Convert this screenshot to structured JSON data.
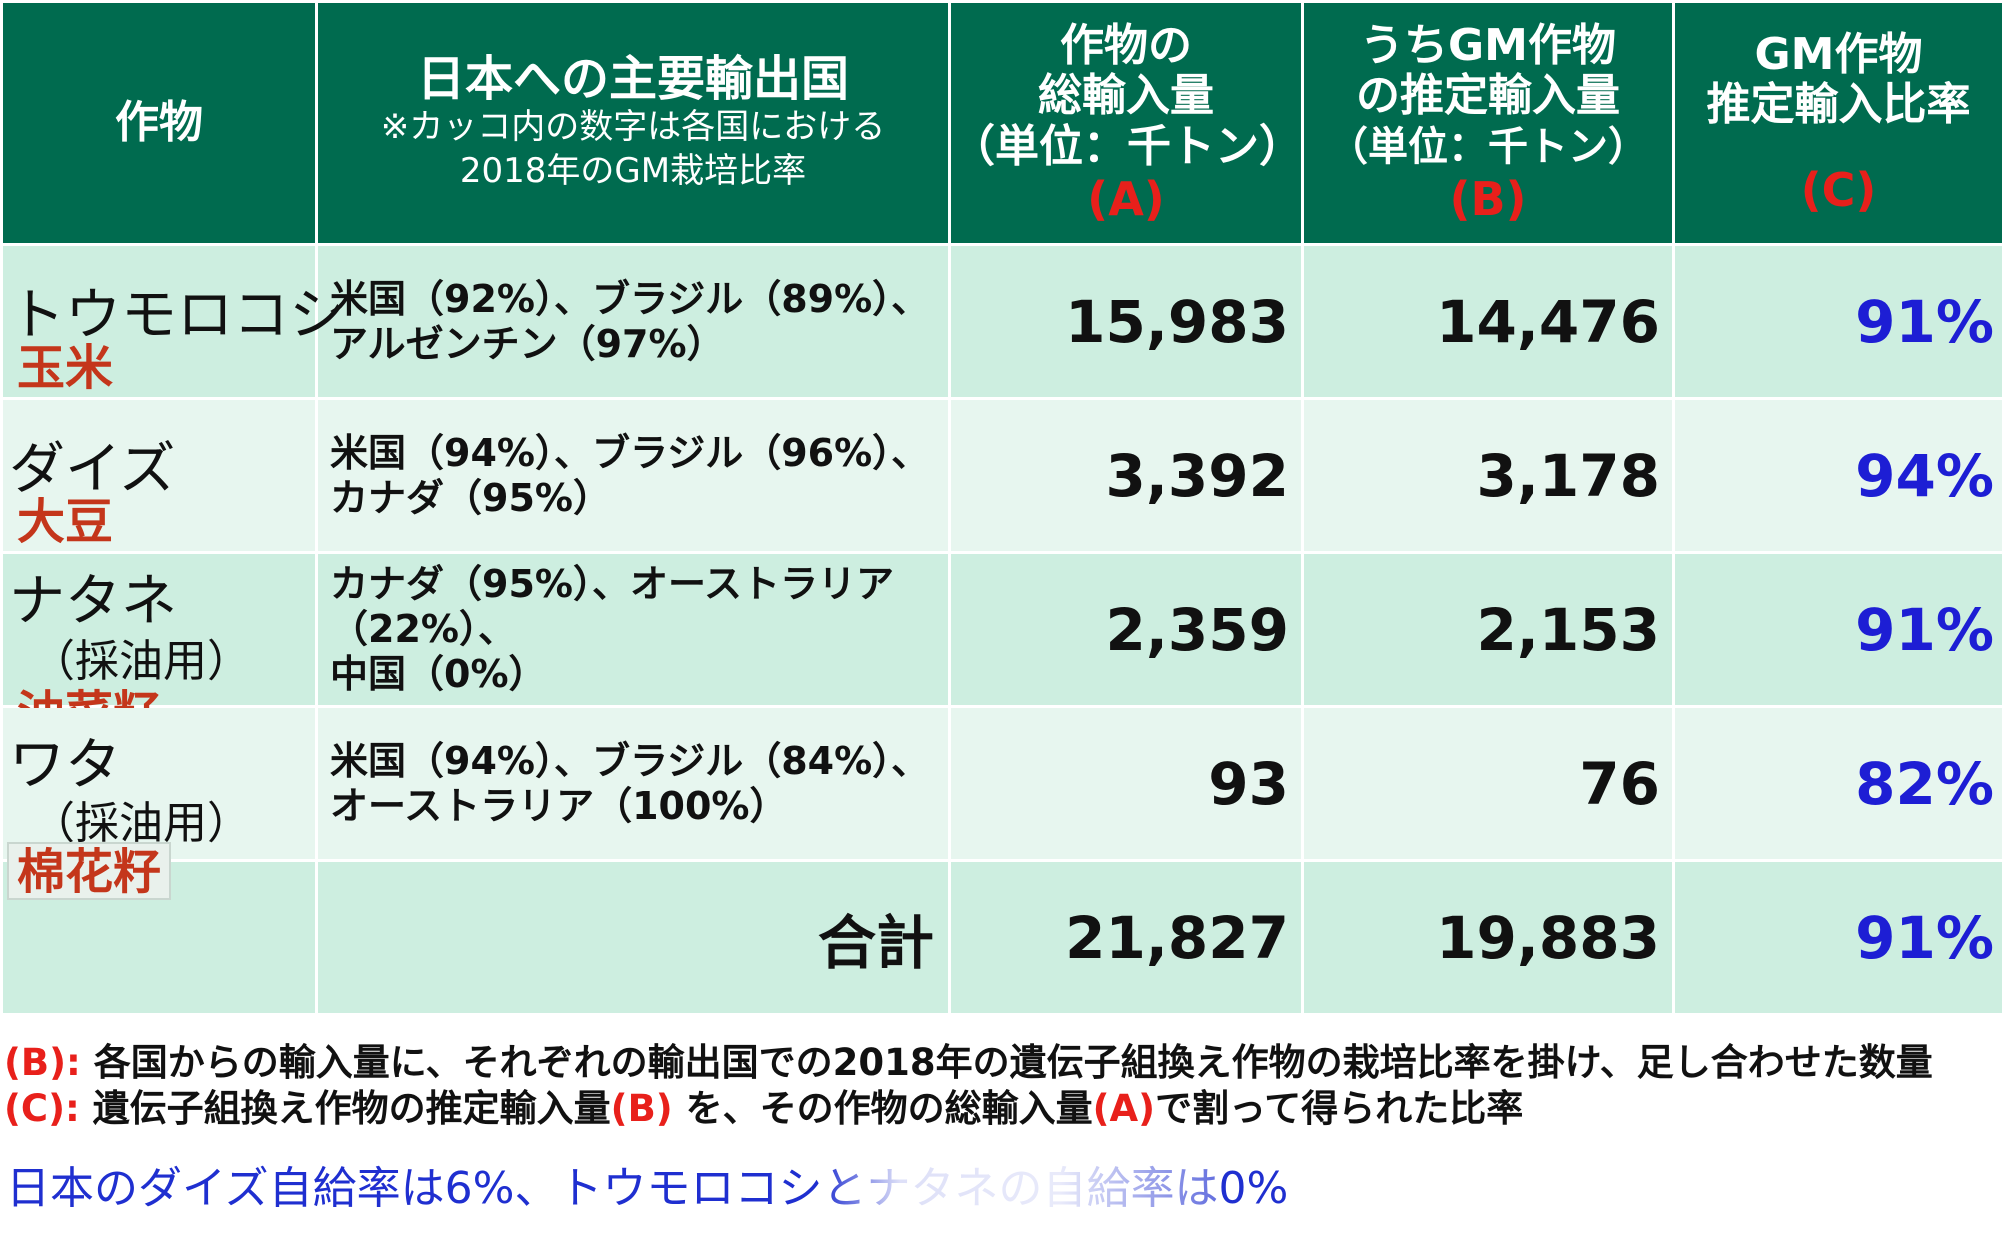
{
  "header": {
    "col1": "作物",
    "col2_title": "日本への主要輸出国",
    "col2_note1": "※カッコ内の数字は各国における",
    "col2_note2": "2018年のGM栽培比率",
    "col3_line1": "作物の",
    "col3_line2": "総輸入量",
    "col3_line3": "（単位：千トン）",
    "col3_tag": "(A)",
    "col4_line1": "うちGM作物",
    "col4_line2": "の推定輸入量",
    "col4_line3": "（単位：千トン）",
    "col4_tag": "(B)",
    "col5_line1": "GM作物",
    "col5_line2": "推定輸入比率",
    "col5_tag": "(C)"
  },
  "rows": [
    {
      "crop": "トウモロコシ",
      "use": "",
      "chinese": "玉米",
      "countries1": "米国（92%）、ブラジル（89%）、",
      "countries2": "アルゼンチン（97%）",
      "countries3": "",
      "total": "15,983",
      "gm": "14,476",
      "ratio": "91%"
    },
    {
      "crop": "ダイズ",
      "use": "",
      "chinese": "大豆",
      "countries1": "米国（94%）、ブラジル（96%）、",
      "countries2": "カナダ（95%）",
      "countries3": "",
      "total": "3,392",
      "gm": "3,178",
      "ratio": "94%"
    },
    {
      "crop": "ナタネ",
      "use": "（採油用）",
      "chinese": "油菜籽",
      "countries1": "カナダ（95%）、オーストラリア",
      "countries2": "（22%）、",
      "countries3": "中国（0%）",
      "total": "2,359",
      "gm": "2,153",
      "ratio": "91%"
    },
    {
      "crop": "ワタ",
      "use": "（採油用）",
      "chinese": "棉花籽",
      "countries1": "米国（94%）、ブラジル（84%）、",
      "countries2": "オーストラリア（100%）",
      "countries3": "",
      "total": "93",
      "gm": "76",
      "ratio": "82%"
    }
  ],
  "totals": {
    "label": "合計",
    "total": "21,827",
    "gm": "19,883",
    "ratio": "91%"
  },
  "notes": {
    "b_tag": "(B):",
    "b_text": " 各国からの輸入量に、それぞれの輸出国での2018年の遺伝子組換え作物の栽培比率を掛け、足し合わせた数量",
    "c_tag": "(C):",
    "c_text1": " 遺伝子組換え作物の推定輸入量",
    "c_mid_tag": "(B)",
    "c_text2": " を、その作物の総輸入量",
    "c_a_tag": "(A)",
    "c_text3": "で割って得られた比率"
  },
  "footer": "日本のダイズ自給率は6%、トウモロコシとナタネの自給率は0%",
  "colors": {
    "header_bg": "#006b4f",
    "row_dark": "#cdeee0",
    "row_light": "#e7f6ef",
    "accent_red": "#e8201b",
    "ratio_blue": "#1d1ed4",
    "chinese_red": "#c4361b",
    "footer_blue": "#1f2fd0"
  }
}
